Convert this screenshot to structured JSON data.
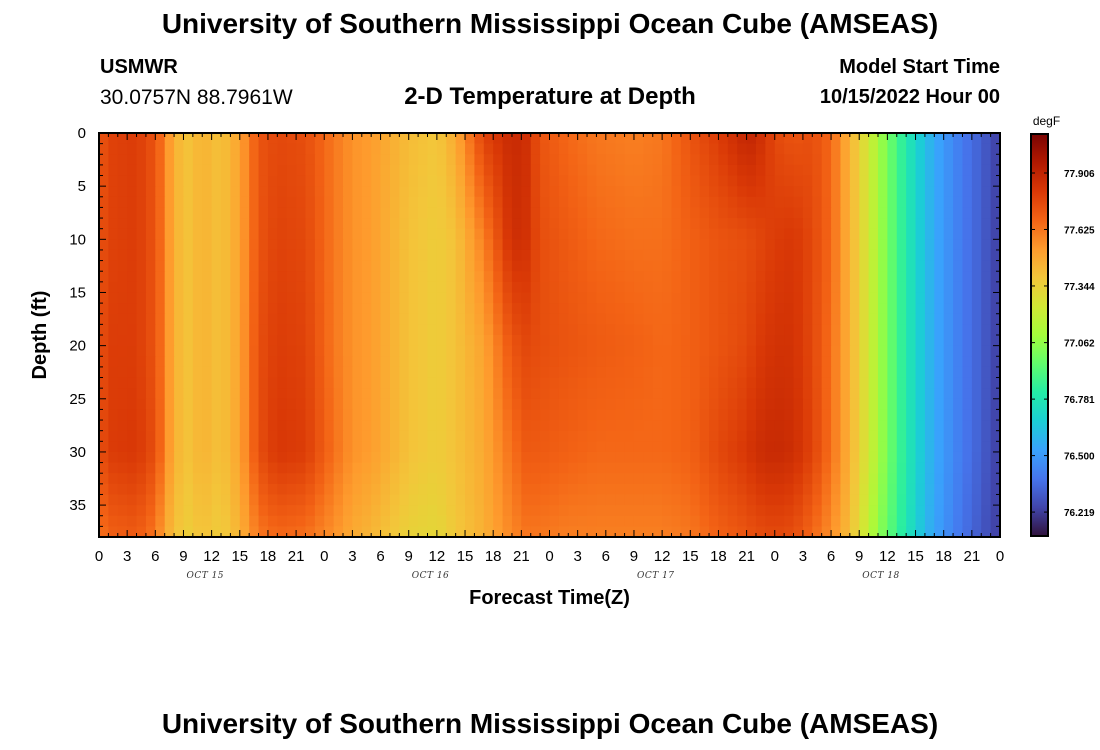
{
  "header": {
    "title": "University of Southern Mississippi Ocean Cube (AMSEAS)",
    "station_name": "USMWR",
    "station_coords": "30.0757N  88.7961W",
    "subtitle": "2-D Temperature at Depth",
    "model_start_label": "Model Start Time",
    "model_start_value": "10/15/2022 Hour 00"
  },
  "footer": {
    "title": "University of Southern Mississippi Ocean Cube (AMSEAS)"
  },
  "chart_data": {
    "type": "heatmap",
    "title": "2-D Temperature at Depth",
    "xlabel": "Forecast Time(Z)",
    "ylabel": "Depth (ft)",
    "x_hours": [
      0,
      3,
      6,
      9,
      12,
      15,
      18,
      21,
      24,
      27,
      30,
      33,
      36,
      39,
      42,
      45,
      48,
      51,
      54,
      57,
      60,
      63,
      66,
      69,
      72,
      75,
      78,
      81,
      84,
      87,
      90,
      93,
      96
    ],
    "x_tick_labels": [
      "0",
      "3",
      "6",
      "9",
      "12",
      "15",
      "18",
      "21",
      "0",
      "3",
      "6",
      "9",
      "12",
      "15",
      "18",
      "21",
      "0",
      "3",
      "6",
      "9",
      "12",
      "15",
      "18",
      "21",
      "0",
      "3",
      "6",
      "9",
      "12",
      "15",
      "18",
      "21",
      "0"
    ],
    "day_labels": [
      {
        "label": "OCT 15",
        "hour": 11
      },
      {
        "label": "OCT 16",
        "hour": 35
      },
      {
        "label": "OCT 17",
        "hour": 59
      },
      {
        "label": "OCT 18",
        "hour": 83
      }
    ],
    "xlim": [
      0,
      96
    ],
    "ylim": [
      38,
      0
    ],
    "y_ticks": [
      0,
      5,
      10,
      15,
      20,
      25,
      30,
      35
    ],
    "y_tick_labels": [
      "0",
      "5",
      "10",
      "15",
      "20",
      "25",
      "30",
      "35"
    ],
    "colorbar": {
      "unit": "degF",
      "tick_values": [
        77.906,
        77.625,
        77.344,
        77.062,
        76.781,
        76.5,
        76.219
      ],
      "tick_labels": [
        "77.906",
        "77.625",
        "77.344",
        "77.062",
        "76.781",
        "76.500",
        "76.219"
      ],
      "range": [
        76.1,
        78.1
      ],
      "colors": [
        "#30123b",
        "#4145ab",
        "#4675ed",
        "#39a2fc",
        "#1bcfd4",
        "#24eca6",
        "#61fc6c",
        "#a4fc3b",
        "#d1e834",
        "#f3c63a",
        "#fe9b2d",
        "#f36315",
        "#d93806",
        "#b11901",
        "#7a0402"
      ]
    },
    "profiles": {
      "depths": [
        0,
        10,
        20,
        30,
        38
      ],
      "hours": [
        0,
        1,
        4,
        6,
        7,
        8,
        9.5,
        11,
        13,
        15,
        17,
        19,
        22,
        25,
        27,
        29,
        33,
        36,
        38,
        41,
        44,
        45.5,
        47,
        50,
        53,
        57,
        60,
        63,
        66,
        69,
        70,
        72,
        74,
        76,
        78,
        79.5,
        81,
        82.5,
        84,
        86,
        88,
        90,
        92,
        94,
        96
      ],
      "temps_d0": [
        77.7,
        77.78,
        77.8,
        77.72,
        77.6,
        77.45,
        77.4,
        77.45,
        77.4,
        77.5,
        77.72,
        77.76,
        77.74,
        77.62,
        77.55,
        77.52,
        77.42,
        77.38,
        77.48,
        77.78,
        77.88,
        77.85,
        77.72,
        77.66,
        77.62,
        77.6,
        77.62,
        77.72,
        77.8,
        77.9,
        77.88,
        77.76,
        77.72,
        77.74,
        77.66,
        77.5,
        77.35,
        77.18,
        77.0,
        76.8,
        76.62,
        76.5,
        76.4,
        76.32,
        76.22
      ],
      "temps_d10": [
        77.72,
        77.78,
        77.8,
        77.72,
        77.6,
        77.45,
        77.4,
        77.45,
        77.4,
        77.5,
        77.72,
        77.78,
        77.76,
        77.62,
        77.55,
        77.52,
        77.4,
        77.36,
        77.4,
        77.6,
        77.86,
        77.84,
        77.74,
        77.7,
        77.66,
        77.64,
        77.64,
        77.68,
        77.72,
        77.74,
        77.76,
        77.8,
        77.82,
        77.76,
        77.66,
        77.5,
        77.35,
        77.18,
        77.0,
        76.8,
        76.62,
        76.5,
        76.4,
        76.32,
        76.22
      ],
      "temps_d20": [
        77.72,
        77.8,
        77.8,
        77.72,
        77.6,
        77.45,
        77.4,
        77.45,
        77.4,
        77.5,
        77.74,
        77.8,
        77.78,
        77.62,
        77.55,
        77.52,
        77.4,
        77.36,
        77.4,
        77.5,
        77.72,
        77.76,
        77.74,
        77.72,
        77.7,
        77.68,
        77.66,
        77.68,
        77.72,
        77.76,
        77.8,
        77.84,
        77.84,
        77.76,
        77.64,
        77.5,
        77.35,
        77.18,
        77.0,
        76.8,
        76.62,
        76.5,
        76.4,
        76.32,
        76.22
      ],
      "temps_d30": [
        77.72,
        77.8,
        77.82,
        77.74,
        77.6,
        77.45,
        77.4,
        77.45,
        77.4,
        77.5,
        77.74,
        77.82,
        77.8,
        77.64,
        77.55,
        77.52,
        77.4,
        77.36,
        77.4,
        77.48,
        77.64,
        77.7,
        77.7,
        77.68,
        77.66,
        77.66,
        77.66,
        77.68,
        77.76,
        77.82,
        77.86,
        77.88,
        77.86,
        77.78,
        77.64,
        77.5,
        77.35,
        77.18,
        77.0,
        76.8,
        76.62,
        76.5,
        76.4,
        76.32,
        76.22
      ],
      "temps_d38": [
        77.62,
        77.68,
        77.7,
        77.62,
        77.5,
        77.4,
        77.36,
        77.4,
        77.36,
        77.45,
        77.62,
        77.66,
        77.64,
        77.55,
        77.48,
        77.44,
        77.34,
        77.32,
        77.38,
        77.46,
        77.58,
        77.62,
        77.62,
        77.6,
        77.6,
        77.6,
        77.6,
        77.62,
        77.68,
        77.72,
        77.74,
        77.76,
        77.74,
        77.66,
        77.56,
        77.45,
        77.3,
        77.12,
        76.96,
        76.78,
        76.6,
        76.48,
        76.38,
        76.3,
        76.22
      ]
    }
  }
}
